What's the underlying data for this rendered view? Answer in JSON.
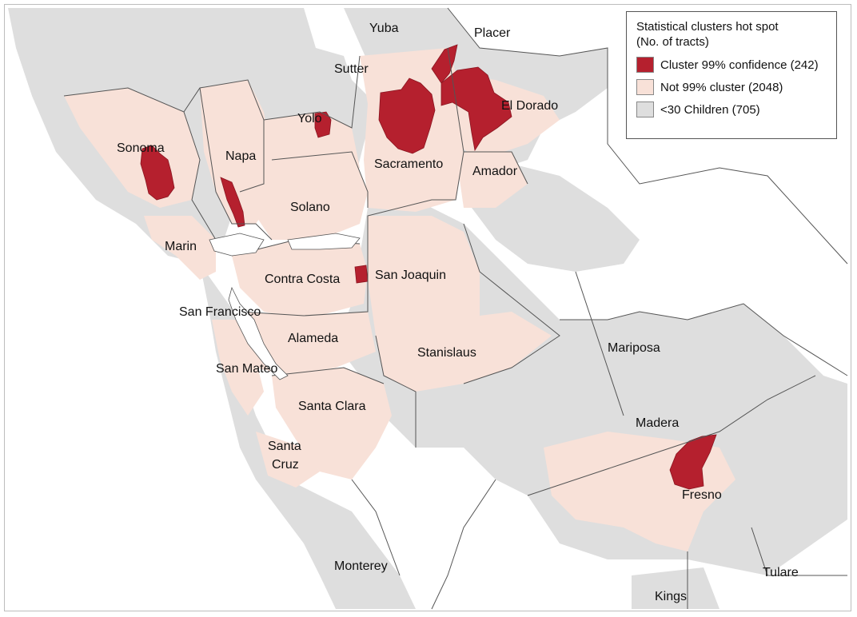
{
  "legend": {
    "title_line1": "Statistical clusters hot spot",
    "title_line2": "(No. of tracts)",
    "items": [
      {
        "label": "Cluster 99% confidence (242)",
        "color": "#b5202e"
      },
      {
        "label": "Not 99% cluster (2048)",
        "color": "#f8e1d8"
      },
      {
        "label": "<30 Children (705)",
        "color": "#dedede"
      }
    ]
  },
  "colors": {
    "cluster": "#b5202e",
    "not_cluster": "#f8e1d8",
    "few_children": "#dedede",
    "border": "#555555",
    "water": "#ffffff"
  },
  "counties": {
    "yuba": "Yuba",
    "placer": "Placer",
    "sutter": "Sutter",
    "yolo": "Yolo",
    "el_dorado": "El Dorado",
    "sonoma": "Sonoma",
    "napa": "Napa",
    "sacramento": "Sacramento",
    "amador": "Amador",
    "solano": "Solano",
    "marin": "Marin",
    "contra_costa": "Contra Costa",
    "san_joaquin": "San Joaquin",
    "san_francisco": "San Francisco",
    "alameda": "Alameda",
    "stanislaus": "Stanislaus",
    "mariposa": "Mariposa",
    "san_mateo": "San Mateo",
    "santa_clara": "Santa Clara",
    "madera": "Madera",
    "santa_cruz_1": "Santa",
    "santa_cruz_2": "Cruz",
    "fresno": "Fresno",
    "monterey": "Monterey",
    "tulare": "Tulare",
    "kings": "Kings"
  }
}
